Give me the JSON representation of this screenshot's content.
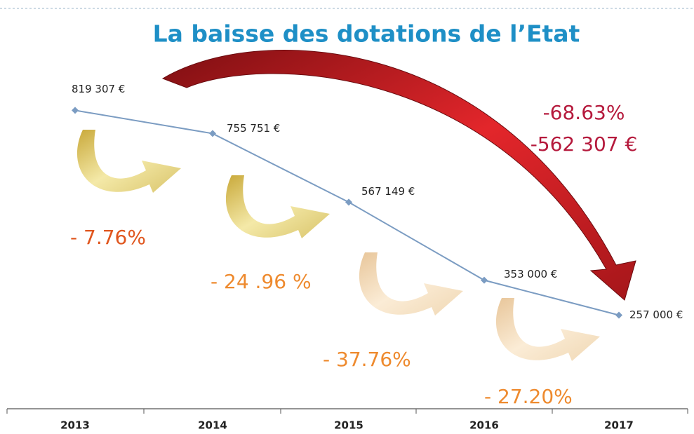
{
  "chart_data": {
    "type": "line",
    "title": "La baisse des dotations de l’Etat",
    "title_color": "#1e8fc6",
    "categories": [
      "2013",
      "2014",
      "2015",
      "2016",
      "2017"
    ],
    "values": [
      819307,
      755751,
      567149,
      353000,
      257000
    ],
    "value_labels": [
      "819 307 €",
      "755 751 €",
      "567 149 €",
      "353 000 €",
      "257 000 €"
    ],
    "color": "#7b9cc2",
    "ylim": [
      0,
      900000
    ],
    "annotations": [
      {
        "text": "- 7.76%",
        "color": "#e0561e"
      },
      {
        "text": "- 24 .96 %",
        "color": "#ee8a2e"
      },
      {
        "text": "- 37.76%",
        "color": "#ee8a2e"
      },
      {
        "text": "- 27.20%",
        "color": "#ee8a2e"
      },
      {
        "text": "-68.63%",
        "color": "#b5193c"
      },
      {
        "text": "-562 307 €",
        "color": "#b5193c"
      }
    ]
  }
}
